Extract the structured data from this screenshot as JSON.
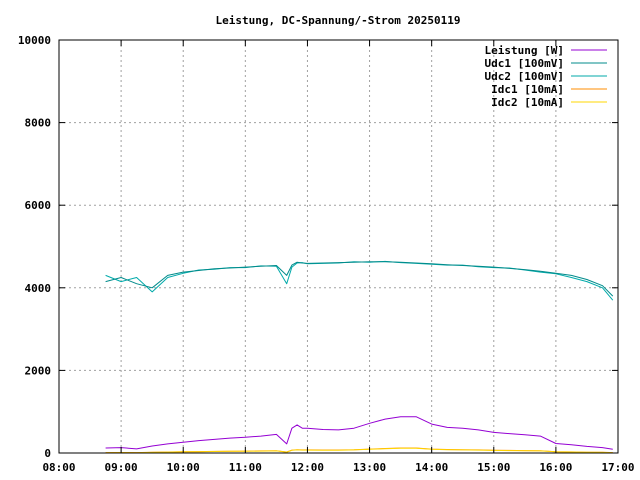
{
  "chart_data": {
    "type": "line",
    "title": "Leistung, DC-Spannung/-Strom 20250119",
    "xlabel": "",
    "ylabel": "",
    "xlim": [
      "08:00",
      "17:00"
    ],
    "ylim": [
      0,
      10000
    ],
    "grid": true,
    "legend_position": "top-right",
    "x_ticks": [
      "08:00",
      "09:00",
      "10:00",
      "11:00",
      "12:00",
      "13:00",
      "14:00",
      "15:00",
      "16:00",
      "17:00"
    ],
    "y_ticks": [
      "0",
      "2000",
      "4000",
      "6000",
      "8000",
      "10000"
    ],
    "series": [
      {
        "name": "Leistung [W]",
        "color": "#9400d3",
        "x": [
          "08:45",
          "09:00",
          "09:15",
          "09:30",
          "09:45",
          "10:00",
          "10:15",
          "10:30",
          "10:45",
          "11:00",
          "11:15",
          "11:30",
          "11:40",
          "11:45",
          "11:50",
          "11:55",
          "12:00",
          "12:15",
          "12:30",
          "12:45",
          "13:00",
          "13:15",
          "13:30",
          "13:45",
          "14:00",
          "14:15",
          "14:30",
          "14:45",
          "15:00",
          "15:15",
          "15:30",
          "15:45",
          "16:00",
          "16:15",
          "16:30",
          "16:45",
          "16:55"
        ],
        "values": [
          120,
          130,
          100,
          170,
          220,
          260,
          300,
          330,
          360,
          380,
          410,
          450,
          220,
          600,
          680,
          600,
          600,
          570,
          560,
          600,
          720,
          820,
          880,
          880,
          700,
          620,
          600,
          560,
          500,
          470,
          440,
          410,
          230,
          200,
          160,
          130,
          90
        ]
      },
      {
        "name": "Udc1 [100mV]",
        "color": "#008b8b",
        "x": [
          "08:45",
          "09:00",
          "09:15",
          "09:30",
          "09:45",
          "10:00",
          "10:15",
          "10:30",
          "10:45",
          "11:00",
          "11:15",
          "11:30",
          "11:40",
          "11:45",
          "11:50",
          "11:55",
          "12:00",
          "12:15",
          "12:30",
          "12:45",
          "13:00",
          "13:15",
          "13:30",
          "13:45",
          "14:00",
          "14:15",
          "14:30",
          "14:45",
          "15:00",
          "15:15",
          "15:30",
          "15:45",
          "16:00",
          "16:15",
          "16:30",
          "16:45",
          "16:55"
        ],
        "values": [
          4150,
          4250,
          4100,
          4000,
          4300,
          4380,
          4420,
          4460,
          4480,
          4500,
          4520,
          4540,
          4300,
          4550,
          4620,
          4600,
          4590,
          4600,
          4610,
          4620,
          4630,
          4630,
          4620,
          4600,
          4580,
          4560,
          4540,
          4520,
          4500,
          4470,
          4440,
          4400,
          4350,
          4300,
          4200,
          4050,
          3800
        ]
      },
      {
        "name": "Udc2 [100mV]",
        "color": "#00aaaa",
        "x": [
          "08:45",
          "09:00",
          "09:15",
          "09:30",
          "09:45",
          "10:00",
          "10:15",
          "10:30",
          "10:45",
          "11:00",
          "11:15",
          "11:30",
          "11:40",
          "11:45",
          "11:50",
          "11:55",
          "12:00",
          "12:15",
          "12:30",
          "12:45",
          "13:00",
          "13:15",
          "13:30",
          "13:45",
          "14:00",
          "14:15",
          "14:30",
          "14:45",
          "15:00",
          "15:15",
          "15:30",
          "15:45",
          "16:00",
          "16:15",
          "16:30",
          "16:45",
          "16:55"
        ],
        "values": [
          4300,
          4150,
          4250,
          3900,
          4250,
          4350,
          4430,
          4450,
          4490,
          4490,
          4530,
          4520,
          4100,
          4500,
          4600,
          4610,
          4580,
          4590,
          4600,
          4630,
          4620,
          4640,
          4610,
          4590,
          4570,
          4550,
          4550,
          4510,
          4490,
          4480,
          4430,
          4380,
          4340,
          4250,
          4150,
          4000,
          3700
        ]
      },
      {
        "name": "Idc1 [10mA]",
        "color": "#ff8c00",
        "x": [
          "08:45",
          "09:00",
          "09:15",
          "09:30",
          "09:45",
          "10:00",
          "10:15",
          "10:30",
          "10:45",
          "11:00",
          "11:15",
          "11:30",
          "11:40",
          "11:45",
          "11:50",
          "11:55",
          "12:00",
          "12:15",
          "12:30",
          "12:45",
          "13:00",
          "13:15",
          "13:30",
          "13:45",
          "14:00",
          "14:15",
          "14:30",
          "14:45",
          "15:00",
          "15:15",
          "15:30",
          "15:45",
          "16:00",
          "16:15",
          "16:30",
          "16:45",
          "16:55"
        ],
        "values": [
          10,
          12,
          10,
          18,
          25,
          30,
          35,
          38,
          42,
          45,
          50,
          55,
          25,
          70,
          80,
          75,
          75,
          72,
          72,
          78,
          95,
          110,
          120,
          120,
          95,
          85,
          80,
          75,
          68,
          62,
          58,
          55,
          30,
          26,
          20,
          16,
          10
        ]
      },
      {
        "name": "Idc2 [10mA]",
        "color": "#ffd700",
        "x": [
          "08:45",
          "09:00",
          "09:15",
          "09:30",
          "09:45",
          "10:00",
          "10:15",
          "10:30",
          "10:45",
          "11:00",
          "11:15",
          "11:30",
          "11:40",
          "11:45",
          "11:50",
          "11:55",
          "12:00",
          "12:15",
          "12:30",
          "12:45",
          "13:00",
          "13:15",
          "13:30",
          "13:45",
          "14:00",
          "14:15",
          "14:30",
          "14:45",
          "15:00",
          "15:15",
          "15:30",
          "15:45",
          "16:00",
          "16:15",
          "16:30",
          "16:45",
          "16:55"
        ],
        "values": [
          8,
          10,
          8,
          15,
          22,
          28,
          32,
          36,
          40,
          42,
          46,
          50,
          22,
          65,
          75,
          70,
          70,
          68,
          68,
          74,
          90,
          105,
          115,
          115,
          90,
          80,
          76,
          70,
          64,
          58,
          54,
          50,
          28,
          24,
          18,
          14,
          8
        ]
      }
    ]
  }
}
